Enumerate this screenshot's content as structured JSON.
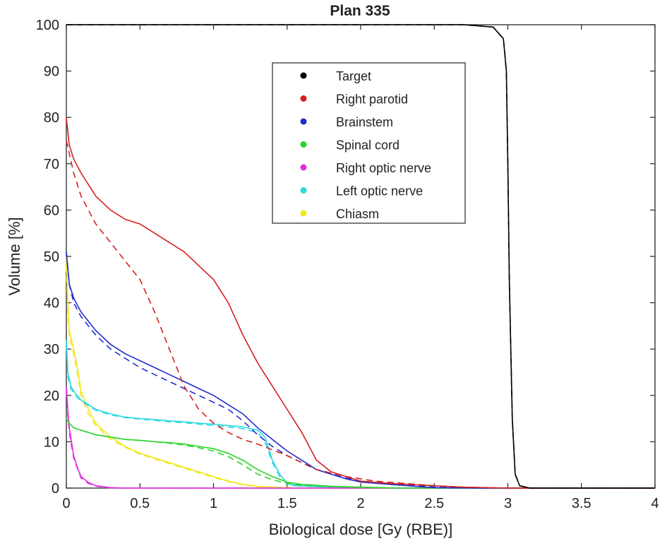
{
  "chart_data": {
    "type": "line",
    "title": "Plan 335",
    "xlabel": "Biological dose [Gy (RBE)]",
    "ylabel": "Volume [%]",
    "xlim": [
      0,
      4
    ],
    "ylim": [
      0,
      100
    ],
    "xticks": [
      "0",
      "0.5",
      "1",
      "1.5",
      "2",
      "2.5",
      "3",
      "3.5",
      "4"
    ],
    "yticks": [
      "0",
      "10",
      "20",
      "30",
      "40",
      "50",
      "60",
      "70",
      "80",
      "90",
      "100"
    ],
    "legend_position": "upper-center",
    "grid": false,
    "series": [
      {
        "name": "Target",
        "color": "#000000",
        "solid": [
          [
            0,
            100
          ],
          [
            2.7,
            100
          ],
          [
            2.9,
            99.5
          ],
          [
            2.97,
            97
          ],
          [
            2.99,
            90
          ],
          [
            3.0,
            70
          ],
          [
            3.01,
            45
          ],
          [
            3.03,
            15
          ],
          [
            3.05,
            3
          ],
          [
            3.08,
            0.5
          ],
          [
            3.15,
            0
          ],
          [
            4,
            0
          ]
        ],
        "dashed": [
          [
            0,
            100
          ],
          [
            2.7,
            100
          ],
          [
            2.9,
            99.5
          ],
          [
            2.97,
            97
          ],
          [
            2.99,
            90
          ],
          [
            3.0,
            70
          ],
          [
            3.01,
            45
          ],
          [
            3.03,
            15
          ],
          [
            3.05,
            3
          ],
          [
            3.08,
            0.5
          ],
          [
            3.15,
            0
          ],
          [
            4,
            0
          ]
        ]
      },
      {
        "name": "Right parotid",
        "color": "#d42020",
        "solid": [
          [
            0,
            80
          ],
          [
            0.02,
            74
          ],
          [
            0.05,
            71
          ],
          [
            0.1,
            68
          ],
          [
            0.2,
            63
          ],
          [
            0.3,
            60
          ],
          [
            0.4,
            58
          ],
          [
            0.5,
            57
          ],
          [
            0.6,
            55
          ],
          [
            0.7,
            53
          ],
          [
            0.8,
            51
          ],
          [
            0.9,
            48
          ],
          [
            1.0,
            45
          ],
          [
            1.1,
            40
          ],
          [
            1.2,
            33
          ],
          [
            1.3,
            27
          ],
          [
            1.4,
            22
          ],
          [
            1.5,
            17
          ],
          [
            1.6,
            12
          ],
          [
            1.7,
            6
          ],
          [
            1.8,
            3.5
          ],
          [
            1.9,
            2.5
          ],
          [
            2.0,
            1.5
          ],
          [
            2.2,
            1
          ],
          [
            2.5,
            0.5
          ],
          [
            2.7,
            0.2
          ],
          [
            3.0,
            0
          ],
          [
            4,
            0
          ]
        ],
        "dashed": [
          [
            0,
            75
          ],
          [
            0.05,
            68
          ],
          [
            0.1,
            63
          ],
          [
            0.2,
            57
          ],
          [
            0.3,
            53
          ],
          [
            0.4,
            49
          ],
          [
            0.5,
            45
          ],
          [
            0.6,
            38
          ],
          [
            0.7,
            30
          ],
          [
            0.8,
            22
          ],
          [
            0.9,
            17
          ],
          [
            1.0,
            14
          ],
          [
            1.1,
            12
          ],
          [
            1.2,
            10.5
          ],
          [
            1.3,
            9.5
          ],
          [
            1.5,
            7
          ],
          [
            1.7,
            4
          ],
          [
            1.9,
            2.5
          ],
          [
            2.1,
            1.5
          ],
          [
            2.3,
            1
          ],
          [
            2.5,
            0.5
          ],
          [
            2.7,
            0.2
          ],
          [
            3.0,
            0
          ],
          [
            4,
            0
          ]
        ]
      },
      {
        "name": "Brainstem",
        "color": "#1f2dcc",
        "solid": [
          [
            0,
            51
          ],
          [
            0.02,
            44
          ],
          [
            0.05,
            41
          ],
          [
            0.1,
            38
          ],
          [
            0.2,
            34
          ],
          [
            0.3,
            31
          ],
          [
            0.4,
            29
          ],
          [
            0.5,
            27.5
          ],
          [
            0.6,
            26
          ],
          [
            0.7,
            24.5
          ],
          [
            0.8,
            23
          ],
          [
            0.9,
            21.5
          ],
          [
            1.0,
            20
          ],
          [
            1.1,
            18
          ],
          [
            1.2,
            16
          ],
          [
            1.3,
            13
          ],
          [
            1.4,
            10.5
          ],
          [
            1.5,
            8
          ],
          [
            1.6,
            6
          ],
          [
            1.7,
            4
          ],
          [
            1.8,
            3
          ],
          [
            1.9,
            2
          ],
          [
            2.0,
            1.3
          ],
          [
            2.2,
            0.8
          ],
          [
            2.4,
            0.3
          ],
          [
            2.5,
            0.1
          ],
          [
            2.8,
            0
          ],
          [
            4,
            0
          ]
        ],
        "dashed": [
          [
            0,
            51
          ],
          [
            0.02,
            44
          ],
          [
            0.05,
            40
          ],
          [
            0.1,
            37
          ],
          [
            0.2,
            33
          ],
          [
            0.3,
            30
          ],
          [
            0.4,
            28
          ],
          [
            0.5,
            26
          ],
          [
            0.6,
            24.5
          ],
          [
            0.7,
            23
          ],
          [
            0.8,
            21.5
          ],
          [
            0.9,
            20
          ],
          [
            1.0,
            18.5
          ],
          [
            1.1,
            17
          ],
          [
            1.2,
            14.5
          ],
          [
            1.3,
            11.5
          ],
          [
            1.4,
            9
          ],
          [
            1.5,
            7
          ],
          [
            1.6,
            5.5
          ],
          [
            1.7,
            4
          ],
          [
            1.8,
            3
          ],
          [
            1.9,
            2.2
          ],
          [
            2.0,
            1.5
          ],
          [
            2.2,
            1
          ],
          [
            2.4,
            0.5
          ],
          [
            2.5,
            0.2
          ],
          [
            2.8,
            0
          ],
          [
            4,
            0
          ]
        ]
      },
      {
        "name": "Spinal cord",
        "color": "#2bd42b",
        "solid": [
          [
            0,
            15
          ],
          [
            0.02,
            14
          ],
          [
            0.05,
            13
          ],
          [
            0.1,
            12.5
          ],
          [
            0.2,
            11.5
          ],
          [
            0.3,
            11
          ],
          [
            0.4,
            10.5
          ],
          [
            0.5,
            10.3
          ],
          [
            0.6,
            10
          ],
          [
            0.7,
            9.8
          ],
          [
            0.8,
            9.5
          ],
          [
            0.9,
            9
          ],
          [
            1.0,
            8.5
          ],
          [
            1.1,
            7.5
          ],
          [
            1.2,
            6
          ],
          [
            1.3,
            4
          ],
          [
            1.4,
            2.5
          ],
          [
            1.5,
            1.3
          ],
          [
            1.6,
            0.8
          ],
          [
            1.7,
            0.6
          ],
          [
            1.8,
            0.4
          ],
          [
            2.0,
            0.2
          ],
          [
            2.3,
            0
          ],
          [
            4,
            0
          ]
        ],
        "dashed": [
          [
            0,
            15
          ],
          [
            0.02,
            14
          ],
          [
            0.05,
            13
          ],
          [
            0.1,
            12.5
          ],
          [
            0.2,
            11.5
          ],
          [
            0.3,
            11
          ],
          [
            0.4,
            10.5
          ],
          [
            0.5,
            10.3
          ],
          [
            0.6,
            10
          ],
          [
            0.7,
            9.7
          ],
          [
            0.8,
            9.3
          ],
          [
            0.9,
            8.7
          ],
          [
            1.0,
            8
          ],
          [
            1.1,
            6.8
          ],
          [
            1.2,
            5
          ],
          [
            1.3,
            3
          ],
          [
            1.4,
            1.8
          ],
          [
            1.5,
            1
          ],
          [
            1.6,
            0.6
          ],
          [
            1.8,
            0.3
          ],
          [
            2.0,
            0.1
          ],
          [
            2.3,
            0
          ],
          [
            4,
            0
          ]
        ]
      },
      {
        "name": "Right optic nerve",
        "color": "#e02ee0",
        "solid": [
          [
            0,
            22
          ],
          [
            0.01,
            17
          ],
          [
            0.02,
            13
          ],
          [
            0.03,
            11
          ],
          [
            0.05,
            7
          ],
          [
            0.08,
            4
          ],
          [
            0.1,
            2.5
          ],
          [
            0.15,
            1.2
          ],
          [
            0.2,
            0.5
          ],
          [
            0.3,
            0.1
          ],
          [
            0.4,
            0
          ],
          [
            4,
            0
          ]
        ],
        "dashed": [
          [
            0,
            21
          ],
          [
            0.01,
            16
          ],
          [
            0.02,
            12
          ],
          [
            0.03,
            10
          ],
          [
            0.05,
            6.5
          ],
          [
            0.08,
            3.8
          ],
          [
            0.1,
            2.2
          ],
          [
            0.15,
            1
          ],
          [
            0.2,
            0.4
          ],
          [
            0.3,
            0.05
          ],
          [
            0.4,
            0
          ],
          [
            4,
            0
          ]
        ]
      },
      {
        "name": "Left optic nerve",
        "color": "#2ed8e0",
        "solid": [
          [
            0,
            32
          ],
          [
            0.01,
            25
          ],
          [
            0.03,
            22
          ],
          [
            0.06,
            20.5
          ],
          [
            0.1,
            19
          ],
          [
            0.2,
            17
          ],
          [
            0.3,
            16
          ],
          [
            0.4,
            15.3
          ],
          [
            0.5,
            15
          ],
          [
            0.6,
            14.8
          ],
          [
            0.7,
            14.5
          ],
          [
            0.8,
            14.3
          ],
          [
            0.9,
            14
          ],
          [
            1.0,
            13.8
          ],
          [
            1.1,
            13.5
          ],
          [
            1.2,
            13.2
          ],
          [
            1.3,
            12.5
          ],
          [
            1.35,
            11
          ],
          [
            1.4,
            6
          ],
          [
            1.45,
            3
          ],
          [
            1.5,
            1
          ],
          [
            1.55,
            0.5
          ],
          [
            1.7,
            0.3
          ],
          [
            1.9,
            0.2
          ],
          [
            2.2,
            0
          ],
          [
            4,
            0
          ]
        ],
        "dashed": [
          [
            0,
            31
          ],
          [
            0.01,
            24
          ],
          [
            0.03,
            21.5
          ],
          [
            0.06,
            20
          ],
          [
            0.1,
            18.8
          ],
          [
            0.2,
            16.8
          ],
          [
            0.3,
            15.8
          ],
          [
            0.4,
            15.2
          ],
          [
            0.5,
            14.9
          ],
          [
            0.6,
            14.6
          ],
          [
            0.7,
            14.3
          ],
          [
            0.8,
            14.1
          ],
          [
            0.9,
            13.8
          ],
          [
            1.0,
            13.5
          ],
          [
            1.1,
            13.2
          ],
          [
            1.2,
            12.8
          ],
          [
            1.3,
            12
          ],
          [
            1.35,
            10
          ],
          [
            1.4,
            5.5
          ],
          [
            1.45,
            2.5
          ],
          [
            1.5,
            1
          ],
          [
            1.6,
            0.5
          ],
          [
            1.8,
            0.3
          ],
          [
            2.0,
            0.1
          ],
          [
            2.2,
            0
          ],
          [
            4,
            0
          ]
        ]
      },
      {
        "name": "Chiasm",
        "color": "#f2e81a",
        "solid": [
          [
            0,
            50
          ],
          [
            0.01,
            40
          ],
          [
            0.02,
            34
          ],
          [
            0.05,
            30
          ],
          [
            0.08,
            25
          ],
          [
            0.1,
            21
          ],
          [
            0.15,
            17
          ],
          [
            0.2,
            14
          ],
          [
            0.3,
            11
          ],
          [
            0.4,
            9
          ],
          [
            0.5,
            7.5
          ],
          [
            0.6,
            6.5
          ],
          [
            0.7,
            5.5
          ],
          [
            0.8,
            4.5
          ],
          [
            0.9,
            3.5
          ],
          [
            1.0,
            2.5
          ],
          [
            1.1,
            1.5
          ],
          [
            1.2,
            0.8
          ],
          [
            1.3,
            0.4
          ],
          [
            1.4,
            0.2
          ],
          [
            1.6,
            0
          ],
          [
            4,
            0
          ]
        ],
        "dashed": [
          [
            0,
            48
          ],
          [
            0.01,
            38
          ],
          [
            0.02,
            33
          ],
          [
            0.05,
            29
          ],
          [
            0.08,
            24
          ],
          [
            0.1,
            20
          ],
          [
            0.15,
            16
          ],
          [
            0.2,
            13.5
          ],
          [
            0.3,
            10.5
          ],
          [
            0.4,
            8.8
          ],
          [
            0.5,
            7.3
          ],
          [
            0.6,
            6.3
          ],
          [
            0.7,
            5.3
          ],
          [
            0.8,
            4.3
          ],
          [
            0.9,
            3.3
          ],
          [
            1.0,
            2.3
          ],
          [
            1.1,
            1.4
          ],
          [
            1.2,
            0.7
          ],
          [
            1.3,
            0.3
          ],
          [
            1.4,
            0.15
          ],
          [
            1.6,
            0
          ],
          [
            4,
            0
          ]
        ]
      }
    ]
  }
}
